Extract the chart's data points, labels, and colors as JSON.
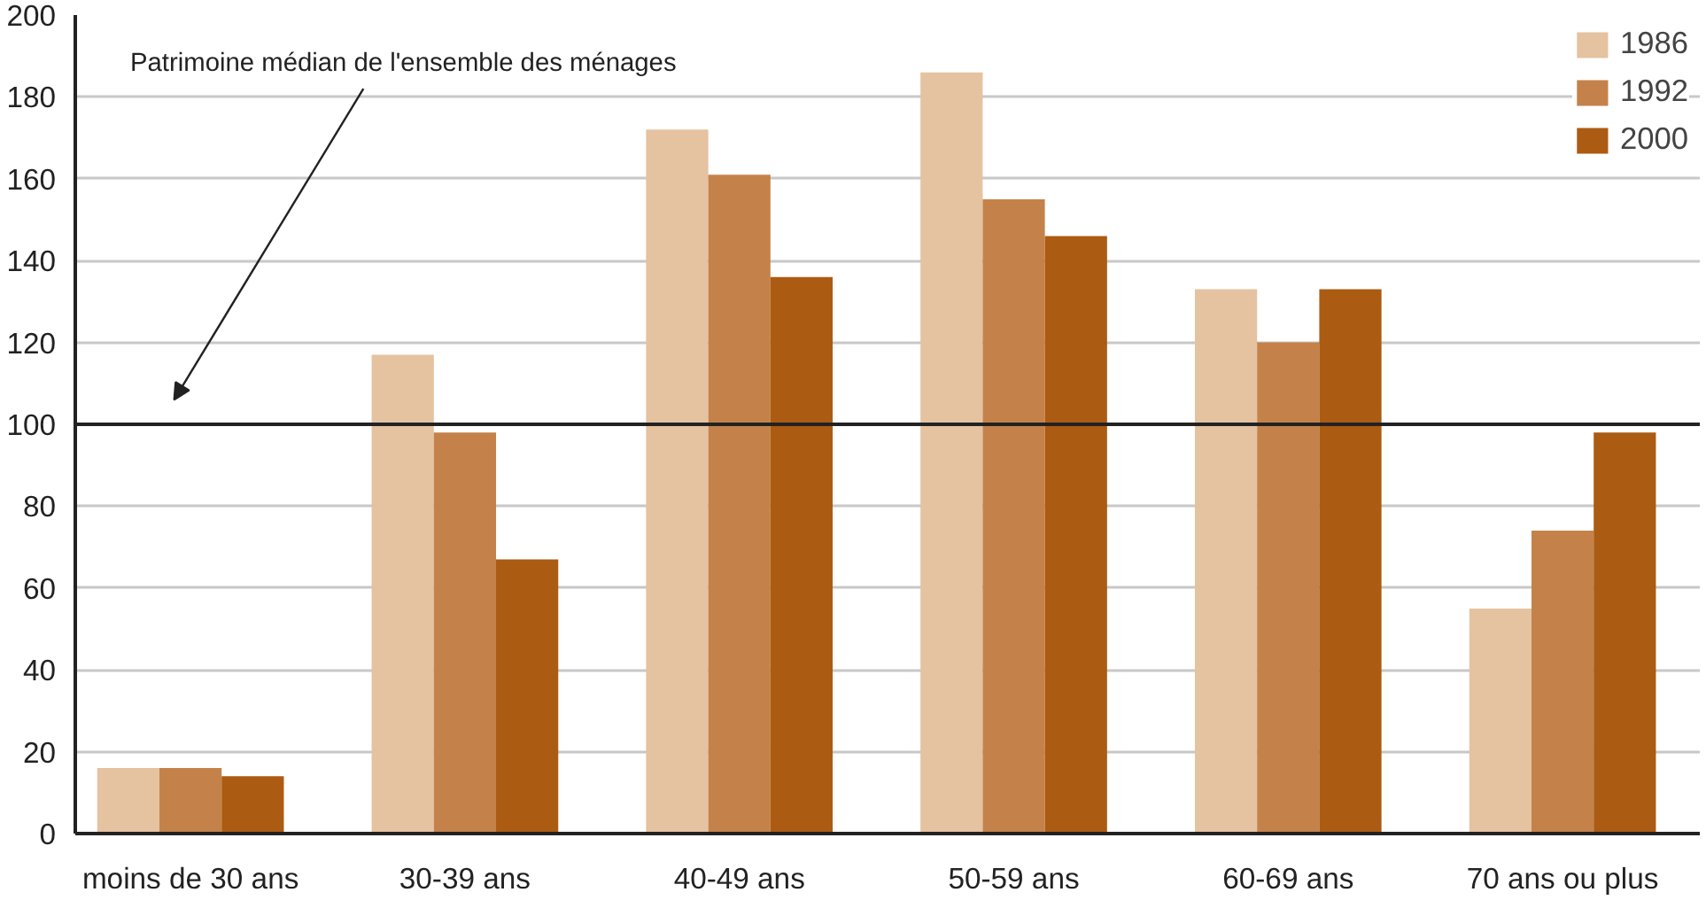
{
  "chart_data": {
    "type": "bar",
    "categories": [
      "moins de 30 ans",
      "30-39 ans",
      "40-49 ans",
      "50-59 ans",
      "60-69 ans",
      "70 ans ou plus"
    ],
    "series": [
      {
        "name": "1986",
        "color": "#e5c2a0",
        "values": [
          16,
          117,
          172,
          186,
          133,
          55
        ]
      },
      {
        "name": "1992",
        "color": "#c4824a",
        "values": [
          16,
          98,
          161,
          155,
          120,
          74
        ]
      },
      {
        "name": "2000",
        "color": "#ab5b12",
        "values": [
          14,
          67,
          136,
          146,
          133,
          98
        ]
      }
    ],
    "ylim": [
      0,
      200
    ],
    "yticks": [
      0,
      20,
      40,
      60,
      80,
      100,
      120,
      140,
      160,
      180,
      200
    ],
    "ref_lines": [
      {
        "axis": "y",
        "value": 100,
        "color": "#222222"
      }
    ],
    "annotations": [
      "Patrimoine médian de l'ensemble des ménages"
    ],
    "grid": "y",
    "legend": "top right"
  }
}
